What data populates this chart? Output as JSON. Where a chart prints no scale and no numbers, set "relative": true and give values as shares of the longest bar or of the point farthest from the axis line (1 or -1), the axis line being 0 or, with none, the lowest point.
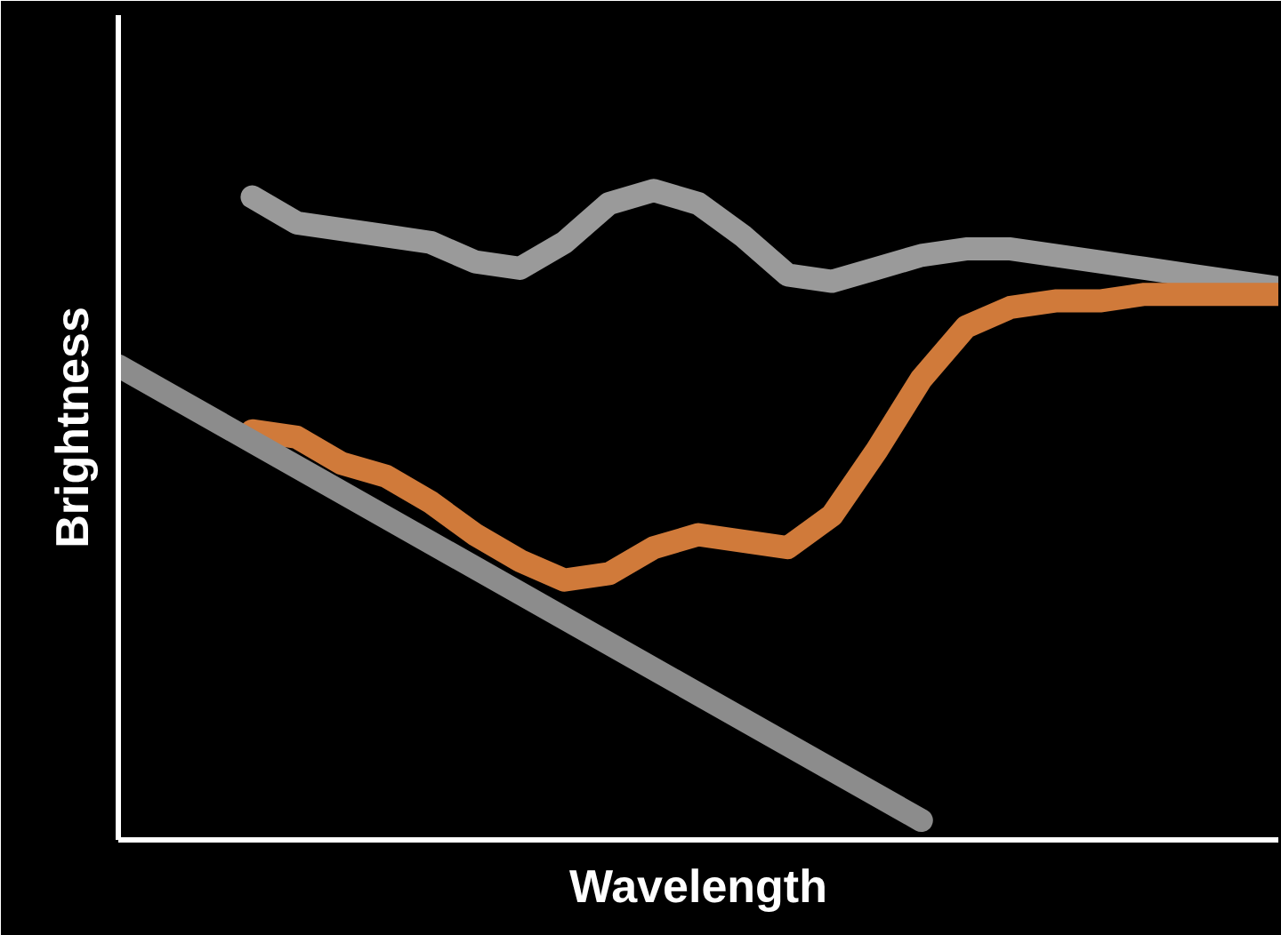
{
  "chart_data": {
    "type": "line",
    "xlabel": "Wavelength",
    "ylabel": "Brightness",
    "relative": true,
    "grid": false,
    "line_style": "solid",
    "categories": [
      null,
      null,
      null,
      null,
      null,
      null,
      null,
      null,
      null,
      null,
      null,
      null,
      null,
      null,
      null,
      null,
      null,
      null,
      null,
      null,
      null,
      null,
      null,
      null,
      null,
      null,
      null
    ],
    "series": [
      {
        "color": "#9a9a9a",
        "values": [
          null,
          null,
          null,
          0.99,
          0.95,
          0.94,
          0.93,
          0.92,
          0.89,
          0.88,
          0.92,
          0.98,
          1.0,
          0.98,
          0.93,
          0.87,
          0.86,
          0.88,
          0.9,
          0.91,
          0.91,
          0.9,
          0.89,
          0.88,
          0.87,
          0.86,
          0.85
        ]
      },
      {
        "color": "#d07a3a",
        "values": [
          null,
          null,
          null,
          0.63,
          0.62,
          0.58,
          0.56,
          0.52,
          0.47,
          0.43,
          0.4,
          0.41,
          0.45,
          0.47,
          0.46,
          0.45,
          0.5,
          0.6,
          0.71,
          0.79,
          0.82,
          0.83,
          0.83,
          0.84,
          0.84,
          0.84,
          0.84
        ]
      },
      {
        "color": "#8c8c8c",
        "values": [
          0.73,
          null,
          null,
          null,
          null,
          null,
          null,
          null,
          null,
          null,
          null,
          null,
          null,
          null,
          null,
          null,
          null,
          null,
          0.03,
          null,
          null,
          null,
          null,
          null,
          null,
          null,
          null
        ]
      }
    ]
  }
}
